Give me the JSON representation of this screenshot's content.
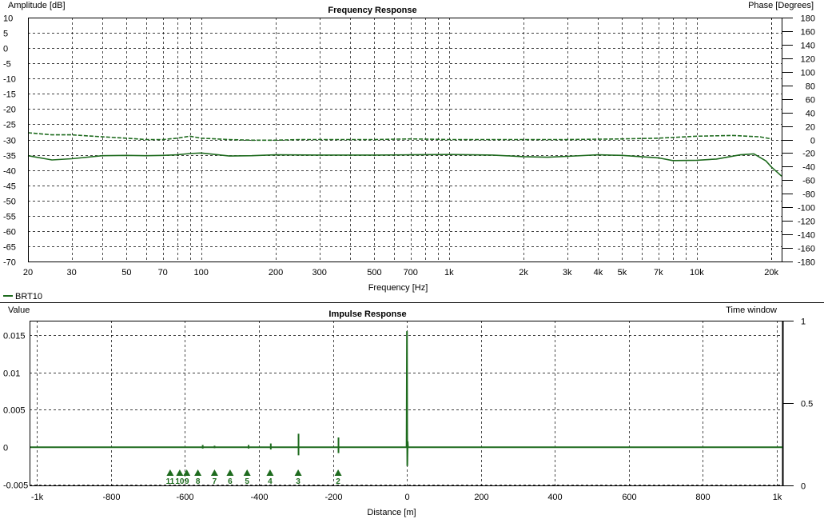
{
  "chart_data": [
    {
      "type": "line",
      "title": "Frequency Response",
      "xlabel": "Frequency [Hz]",
      "ylabel": "Amplitude [dB]",
      "y2label": "Phase [Degrees]",
      "xscale": "log",
      "xlim": [
        20,
        22000
      ],
      "ylim": [
        -70,
        10
      ],
      "y2lim": [
        -180,
        180
      ],
      "x_ticks": [
        "20",
        "30",
        "50",
        "70",
        "100",
        "200",
        "300",
        "500",
        "700",
        "1k",
        "2k",
        "3k",
        "4k",
        "5k",
        "7k",
        "10k",
        "20k"
      ],
      "x_tick_values": [
        20,
        30,
        50,
        70,
        100,
        200,
        300,
        500,
        700,
        1000,
        2000,
        3000,
        4000,
        5000,
        7000,
        10000,
        20000
      ],
      "y_ticks": [
        "10",
        "5",
        "0",
        "-5",
        "-10",
        "-15",
        "-20",
        "-25",
        "-30",
        "-35",
        "-40",
        "-45",
        "-50",
        "-55",
        "-60",
        "-65",
        "-70"
      ],
      "y2_ticks": [
        "180",
        "160",
        "140",
        "120",
        "100",
        "80",
        "60",
        "40",
        "20",
        "0",
        "-20",
        "-40",
        "-60",
        "-80",
        "-100",
        "-120",
        "-140",
        "-160",
        "-180"
      ],
      "grid": true,
      "legend": "bottom-left",
      "series": [
        {
          "name": "BRT10",
          "color": "#1e6b1e",
          "style": "dashed",
          "axis": "phase",
          "x": [
            20,
            25,
            30,
            40,
            50,
            60,
            70,
            80,
            90,
            100,
            130,
            160,
            200,
            250,
            300,
            400,
            500,
            700,
            1000,
            1500,
            2000,
            3000,
            5000,
            7000,
            10000,
            14000,
            18000,
            20000
          ],
          "values": [
            10,
            7,
            7,
            4,
            2,
            0,
            0,
            2,
            5,
            2,
            0,
            -1,
            -1,
            0,
            0,
            0,
            0,
            1,
            0,
            0,
            0,
            0,
            1,
            2,
            5,
            6,
            4,
            1
          ]
        },
        {
          "name": "BRT10",
          "color": "#1e6b1e",
          "style": "solid",
          "axis": "amplitude",
          "x": [
            20,
            25,
            30,
            40,
            50,
            60,
            70,
            80,
            90,
            100,
            130,
            160,
            200,
            300,
            500,
            700,
            1000,
            1500,
            2000,
            2500,
            3000,
            4000,
            5000,
            7000,
            8000,
            10000,
            12000,
            15000,
            17000,
            19000,
            20000,
            22000
          ],
          "values": [
            -35.3,
            -36.7,
            -36.3,
            -35.3,
            -35.2,
            -35.3,
            -35.2,
            -35.0,
            -34.6,
            -34.4,
            -35.4,
            -35.3,
            -35.0,
            -35.1,
            -35.1,
            -35.0,
            -34.9,
            -35.1,
            -35.6,
            -35.8,
            -35.5,
            -35.0,
            -35.2,
            -36.0,
            -36.9,
            -36.8,
            -36.4,
            -35.0,
            -34.7,
            -37.0,
            -39.0,
            -42.0
          ]
        }
      ]
    },
    {
      "type": "line",
      "title": "Impulse Response",
      "xlabel": "Distance [m]",
      "ylabel": "Value",
      "y2label": "Time window",
      "xlim": [
        -1020,
        1015
      ],
      "ylim": [
        -0.0051,
        0.0169
      ],
      "y2lim": [
        0,
        1
      ],
      "x_ticks": [
        "-1k",
        "-800",
        "-600",
        "-400",
        "-200",
        "0",
        "200",
        "400",
        "600",
        "800",
        "1k"
      ],
      "x_tick_values": [
        -1000,
        -800,
        -600,
        -400,
        -200,
        0,
        200,
        400,
        600,
        800,
        1000
      ],
      "y_ticks": [
        "0.015",
        "0.01",
        "0.005",
        "0",
        "-0.005"
      ],
      "y_tick_values": [
        0.015,
        0.01,
        0.005,
        0,
        -0.005
      ],
      "y2_ticks": [
        "1",
        "0.5",
        "0"
      ],
      "y2_tick_values": [
        1,
        0.5,
        0
      ],
      "grid": true,
      "series": [
        {
          "name": "BRT10",
          "color": "#1e6b1e",
          "x": [
            -1020,
            -1,
            0,
            1,
            2,
            3,
            1015
          ],
          "values": [
            0,
            0,
            0.0155,
            -0.0025,
            0.0008,
            0,
            0
          ]
        }
      ],
      "spikes": [
        {
          "x": -552,
          "amp": 0.0003
        },
        {
          "x": -520,
          "amp": 0.0002
        },
        {
          "x": -428,
          "amp": 0.0003
        },
        {
          "x": -368,
          "amp": 0.0005
        },
        {
          "x": -293,
          "amp": 0.0018
        },
        {
          "x": -185,
          "amp": 0.0013
        }
      ],
      "markers": [
        {
          "label": "11",
          "x": -640
        },
        {
          "label": "10",
          "x": -614
        },
        {
          "label": "9",
          "x": -595
        },
        {
          "label": "8",
          "x": -565
        },
        {
          "label": "7",
          "x": -520
        },
        {
          "label": "6",
          "x": -478
        },
        {
          "label": "5",
          "x": -432
        },
        {
          "label": "4",
          "x": -370
        },
        {
          "label": "3",
          "x": -294
        },
        {
          "label": "2",
          "x": -186
        }
      ]
    }
  ]
}
